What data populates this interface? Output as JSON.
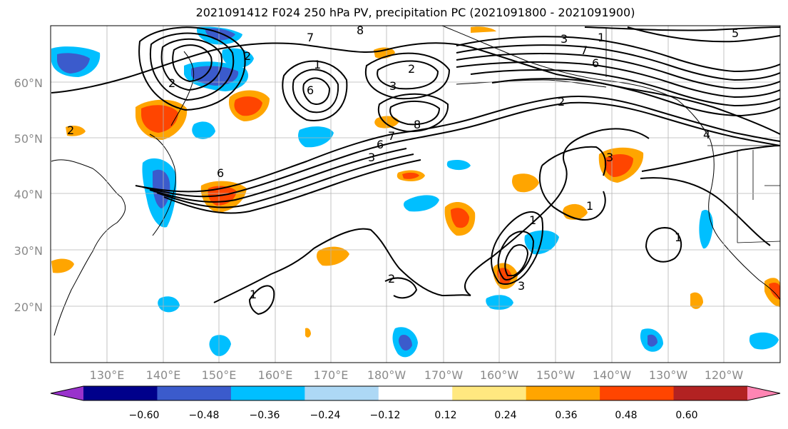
{
  "title": "2021091412 F024 250 hPa PV, precipitation PC (2021091800 - 2021091900)",
  "lat_labels": [
    "60°N",
    "50°N",
    "40°N",
    "30°N",
    "20°N"
  ],
  "lon_labels": [
    "130°E",
    "140°E",
    "150°E",
    "160°E",
    "170°E",
    "180°W",
    "170°W",
    "160°W",
    "150°W",
    "140°W",
    "130°W",
    "120°W"
  ],
  "colorbar": {
    "colors": [
      "#9932cc",
      "#00008b",
      "#3b5bcc",
      "#00bfff",
      "#add8f5",
      "#ffffff",
      "#ffe880",
      "#ffa500",
      "#ff4500",
      "#b22222",
      "#ff85b3"
    ],
    "labels": [
      "−0.60",
      "−0.48",
      "−0.36",
      "−0.24",
      "−0.12",
      "0.12",
      "0.24",
      "0.36",
      "0.48",
      "0.60"
    ]
  },
  "contour_labels": [
    "8",
    "7",
    "2",
    "2",
    "3",
    "1",
    "4",
    "5",
    "6",
    "7",
    "3",
    "6",
    "2",
    "1",
    "2",
    "8",
    "7",
    "6",
    "3",
    "6",
    "2",
    "1",
    "1",
    "1",
    "2",
    "1",
    "3",
    "3"
  ]
}
